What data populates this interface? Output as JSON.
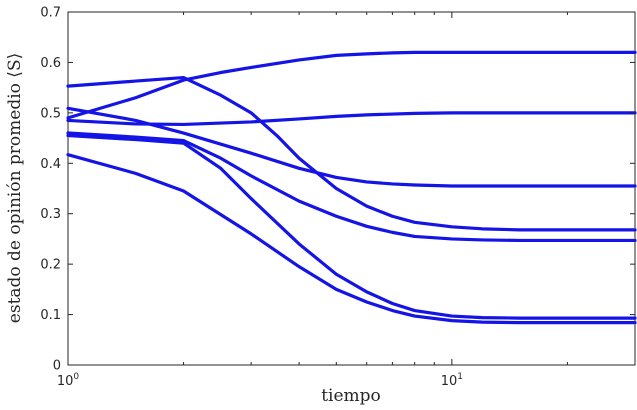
{
  "chart_data": {
    "type": "line",
    "title": "",
    "xlabel": "tiempo",
    "ylabel": "estado de opinión promedio ⟨S⟩",
    "x_scale": "log",
    "xlim": [
      1,
      30
    ],
    "ylim": [
      0,
      0.7
    ],
    "x_ticks": [
      {
        "value": 1,
        "base": "10",
        "exp": "0"
      },
      {
        "value": 10,
        "base": "10",
        "exp": "1"
      }
    ],
    "y_ticks": [
      {
        "value": 0,
        "label": "0"
      },
      {
        "value": 0.1,
        "label": "0.1"
      },
      {
        "value": 0.2,
        "label": "0.2"
      },
      {
        "value": 0.3,
        "label": "0.3"
      },
      {
        "value": 0.4,
        "label": "0.4"
      },
      {
        "value": 0.5,
        "label": "0.5"
      },
      {
        "value": 0.6,
        "label": "0.6"
      },
      {
        "value": 0.7,
        "label": "0.7"
      }
    ],
    "grid": false,
    "line_color": "#1414e6",
    "series": [
      {
        "x": [
          1,
          1.5,
          2,
          2.5,
          3,
          4,
          5,
          6,
          7,
          8,
          10,
          15,
          20,
          30
        ],
        "y": [
          0.49,
          0.53,
          0.565,
          0.58,
          0.59,
          0.605,
          0.614,
          0.617,
          0.619,
          0.62,
          0.62,
          0.62,
          0.62,
          0.62
        ]
      },
      {
        "x": [
          1,
          1.5,
          2,
          2.5,
          3,
          3.5,
          4,
          5,
          6,
          7,
          8,
          10,
          12,
          15,
          20,
          30
        ],
        "y": [
          0.553,
          0.563,
          0.57,
          0.535,
          0.5,
          0.455,
          0.41,
          0.35,
          0.315,
          0.295,
          0.283,
          0.274,
          0.27,
          0.268,
          0.268,
          0.268
        ]
      },
      {
        "x": [
          1,
          1.5,
          2,
          3,
          4,
          5,
          6,
          8,
          10,
          15,
          20,
          30
        ],
        "y": [
          0.485,
          0.478,
          0.477,
          0.482,
          0.488,
          0.493,
          0.496,
          0.499,
          0.5,
          0.5,
          0.5,
          0.5
        ]
      },
      {
        "x": [
          1,
          1.5,
          2,
          3,
          4,
          5,
          6,
          7,
          8,
          10,
          12,
          15,
          20,
          30
        ],
        "y": [
          0.509,
          0.485,
          0.46,
          0.42,
          0.39,
          0.372,
          0.363,
          0.359,
          0.357,
          0.355,
          0.355,
          0.355,
          0.355,
          0.355
        ]
      },
      {
        "x": [
          1,
          1.5,
          2,
          2.5,
          3,
          4,
          5,
          6,
          7,
          8,
          10,
          12,
          15,
          20,
          30
        ],
        "y": [
          0.46,
          0.452,
          0.445,
          0.41,
          0.375,
          0.325,
          0.295,
          0.275,
          0.263,
          0.255,
          0.25,
          0.248,
          0.247,
          0.247,
          0.247
        ]
      },
      {
        "x": [
          1,
          1.5,
          2,
          2.5,
          3,
          4,
          5,
          6,
          7,
          8,
          10,
          12,
          15,
          20,
          30
        ],
        "y": [
          0.455,
          0.447,
          0.44,
          0.39,
          0.33,
          0.24,
          0.18,
          0.145,
          0.122,
          0.108,
          0.097,
          0.094,
          0.093,
          0.093,
          0.093
        ]
      },
      {
        "x": [
          1,
          1.5,
          2,
          3,
          4,
          5,
          6,
          7,
          8,
          10,
          12,
          15,
          20,
          30
        ],
        "y": [
          0.417,
          0.38,
          0.345,
          0.26,
          0.195,
          0.15,
          0.125,
          0.108,
          0.097,
          0.088,
          0.085,
          0.084,
          0.084,
          0.084
        ]
      }
    ]
  }
}
